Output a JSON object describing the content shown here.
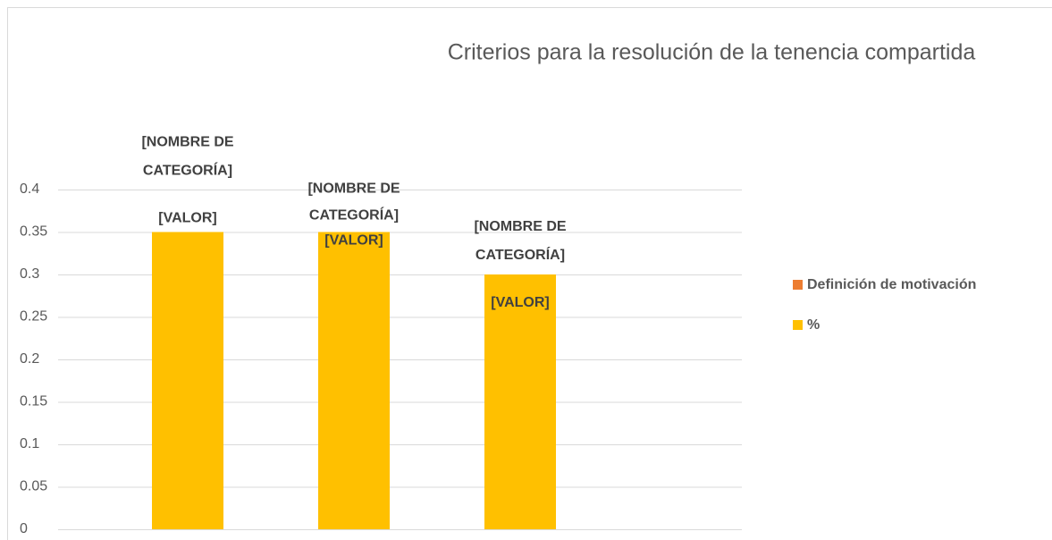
{
  "chart_data": {
    "type": "bar",
    "title": "Criterios para la resolución de la tenencia compartida",
    "categories": [
      null,
      null,
      null,
      null
    ],
    "series": [
      {
        "name": "Definición de motivación",
        "color": "#ed7d31",
        "values": [
          null,
          null,
          null,
          null
        ]
      },
      {
        "name": "%",
        "color": "#ffc000",
        "values": [
          0.35,
          0.35,
          0.3,
          null
        ]
      }
    ],
    "data_labels": [
      {
        "name": [
          "[NOMBRE DE",
          "CATEGORÍA]"
        ],
        "value": "[VALOR]"
      },
      {
        "name": [
          "[NOMBRE DE",
          "CATEGORÍA]"
        ],
        "value": "[VALOR]"
      },
      {
        "name": [
          "[NOMBRE DE",
          "CATEGORÍA]"
        ],
        "value": "[VALOR]"
      }
    ],
    "ylim": [
      0,
      0.4
    ],
    "yticks": [
      0,
      0.05,
      0.1,
      0.15,
      0.2,
      0.25,
      0.3,
      0.35,
      0.4
    ],
    "grid": true,
    "legend": "right"
  }
}
